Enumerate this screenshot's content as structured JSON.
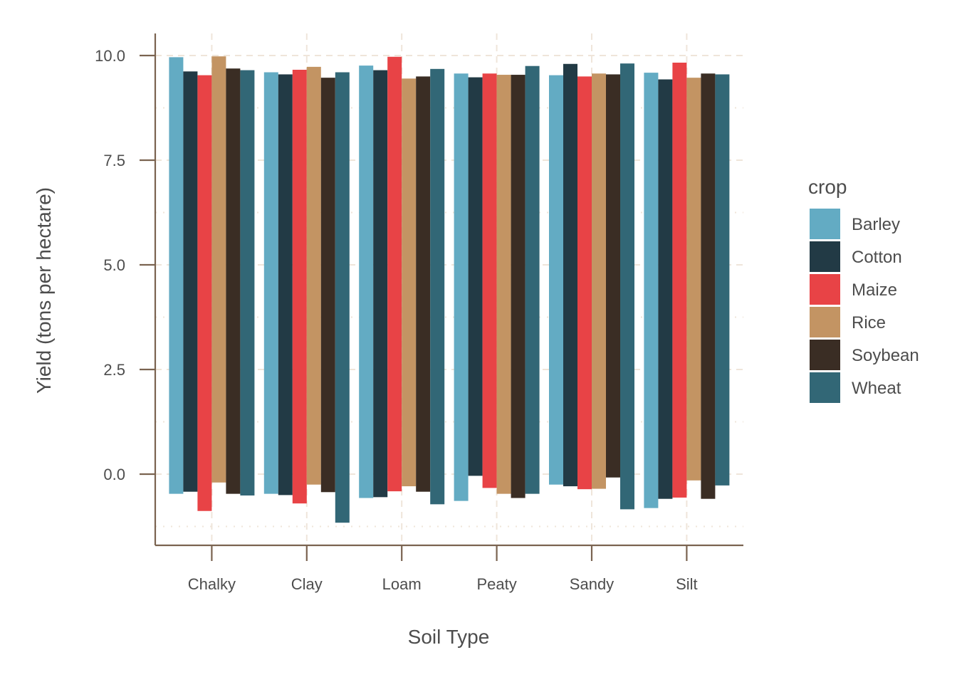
{
  "chart_data": {
    "type": "bar",
    "xlabel": "Soil Type",
    "ylabel": "Yield (tons per hectare)",
    "ylim": [
      -1.7,
      10.5
    ],
    "yticks": [
      "0.0",
      "2.5",
      "5.0",
      "7.5",
      "10.0"
    ],
    "categories": [
      "Chalky",
      "Clay",
      "Loam",
      "Peaty",
      "Sandy",
      "Silt"
    ],
    "legend_title": "crop",
    "legend_position": "right",
    "grid": true,
    "series": [
      {
        "name": "Barley",
        "color": "#63ABC3",
        "ranges": [
          [
            -0.47,
            9.96
          ],
          [
            -0.47,
            9.6
          ],
          [
            -0.57,
            9.76
          ],
          [
            -0.64,
            9.57
          ],
          [
            -0.25,
            9.53
          ],
          [
            -0.81,
            9.59
          ]
        ]
      },
      {
        "name": "Cotton",
        "color": "#223A45",
        "ranges": [
          [
            -0.42,
            9.62
          ],
          [
            -0.5,
            9.55
          ],
          [
            -0.55,
            9.65
          ],
          [
            -0.04,
            9.48
          ],
          [
            -0.29,
            9.8
          ],
          [
            -0.59,
            9.43
          ]
        ]
      },
      {
        "name": "Maize",
        "color": "#E84346",
        "ranges": [
          [
            -0.88,
            9.53
          ],
          [
            -0.7,
            9.66
          ],
          [
            -0.41,
            9.97
          ],
          [
            -0.33,
            9.57
          ],
          [
            -0.36,
            9.5
          ],
          [
            -0.56,
            9.83
          ]
        ]
      },
      {
        "name": "Rice",
        "color": "#C39463",
        "ranges": [
          [
            -0.2,
            9.98
          ],
          [
            -0.25,
            9.73
          ],
          [
            -0.29,
            9.45
          ],
          [
            -0.47,
            9.54
          ],
          [
            -0.35,
            9.57
          ],
          [
            -0.15,
            9.47
          ]
        ]
      },
      {
        "name": "Soybean",
        "color": "#3A2D24",
        "ranges": [
          [
            -0.47,
            9.69
          ],
          [
            -0.43,
            9.47
          ],
          [
            -0.42,
            9.5
          ],
          [
            -0.57,
            9.54
          ],
          [
            -0.08,
            9.55
          ],
          [
            -0.59,
            9.57
          ]
        ]
      },
      {
        "name": "Wheat",
        "color": "#326776",
        "ranges": [
          [
            -0.51,
            9.65
          ],
          [
            -1.16,
            9.6
          ],
          [
            -0.72,
            9.68
          ],
          [
            -0.47,
            9.75
          ],
          [
            -0.84,
            9.81
          ],
          [
            -0.27,
            9.55
          ]
        ]
      }
    ]
  }
}
